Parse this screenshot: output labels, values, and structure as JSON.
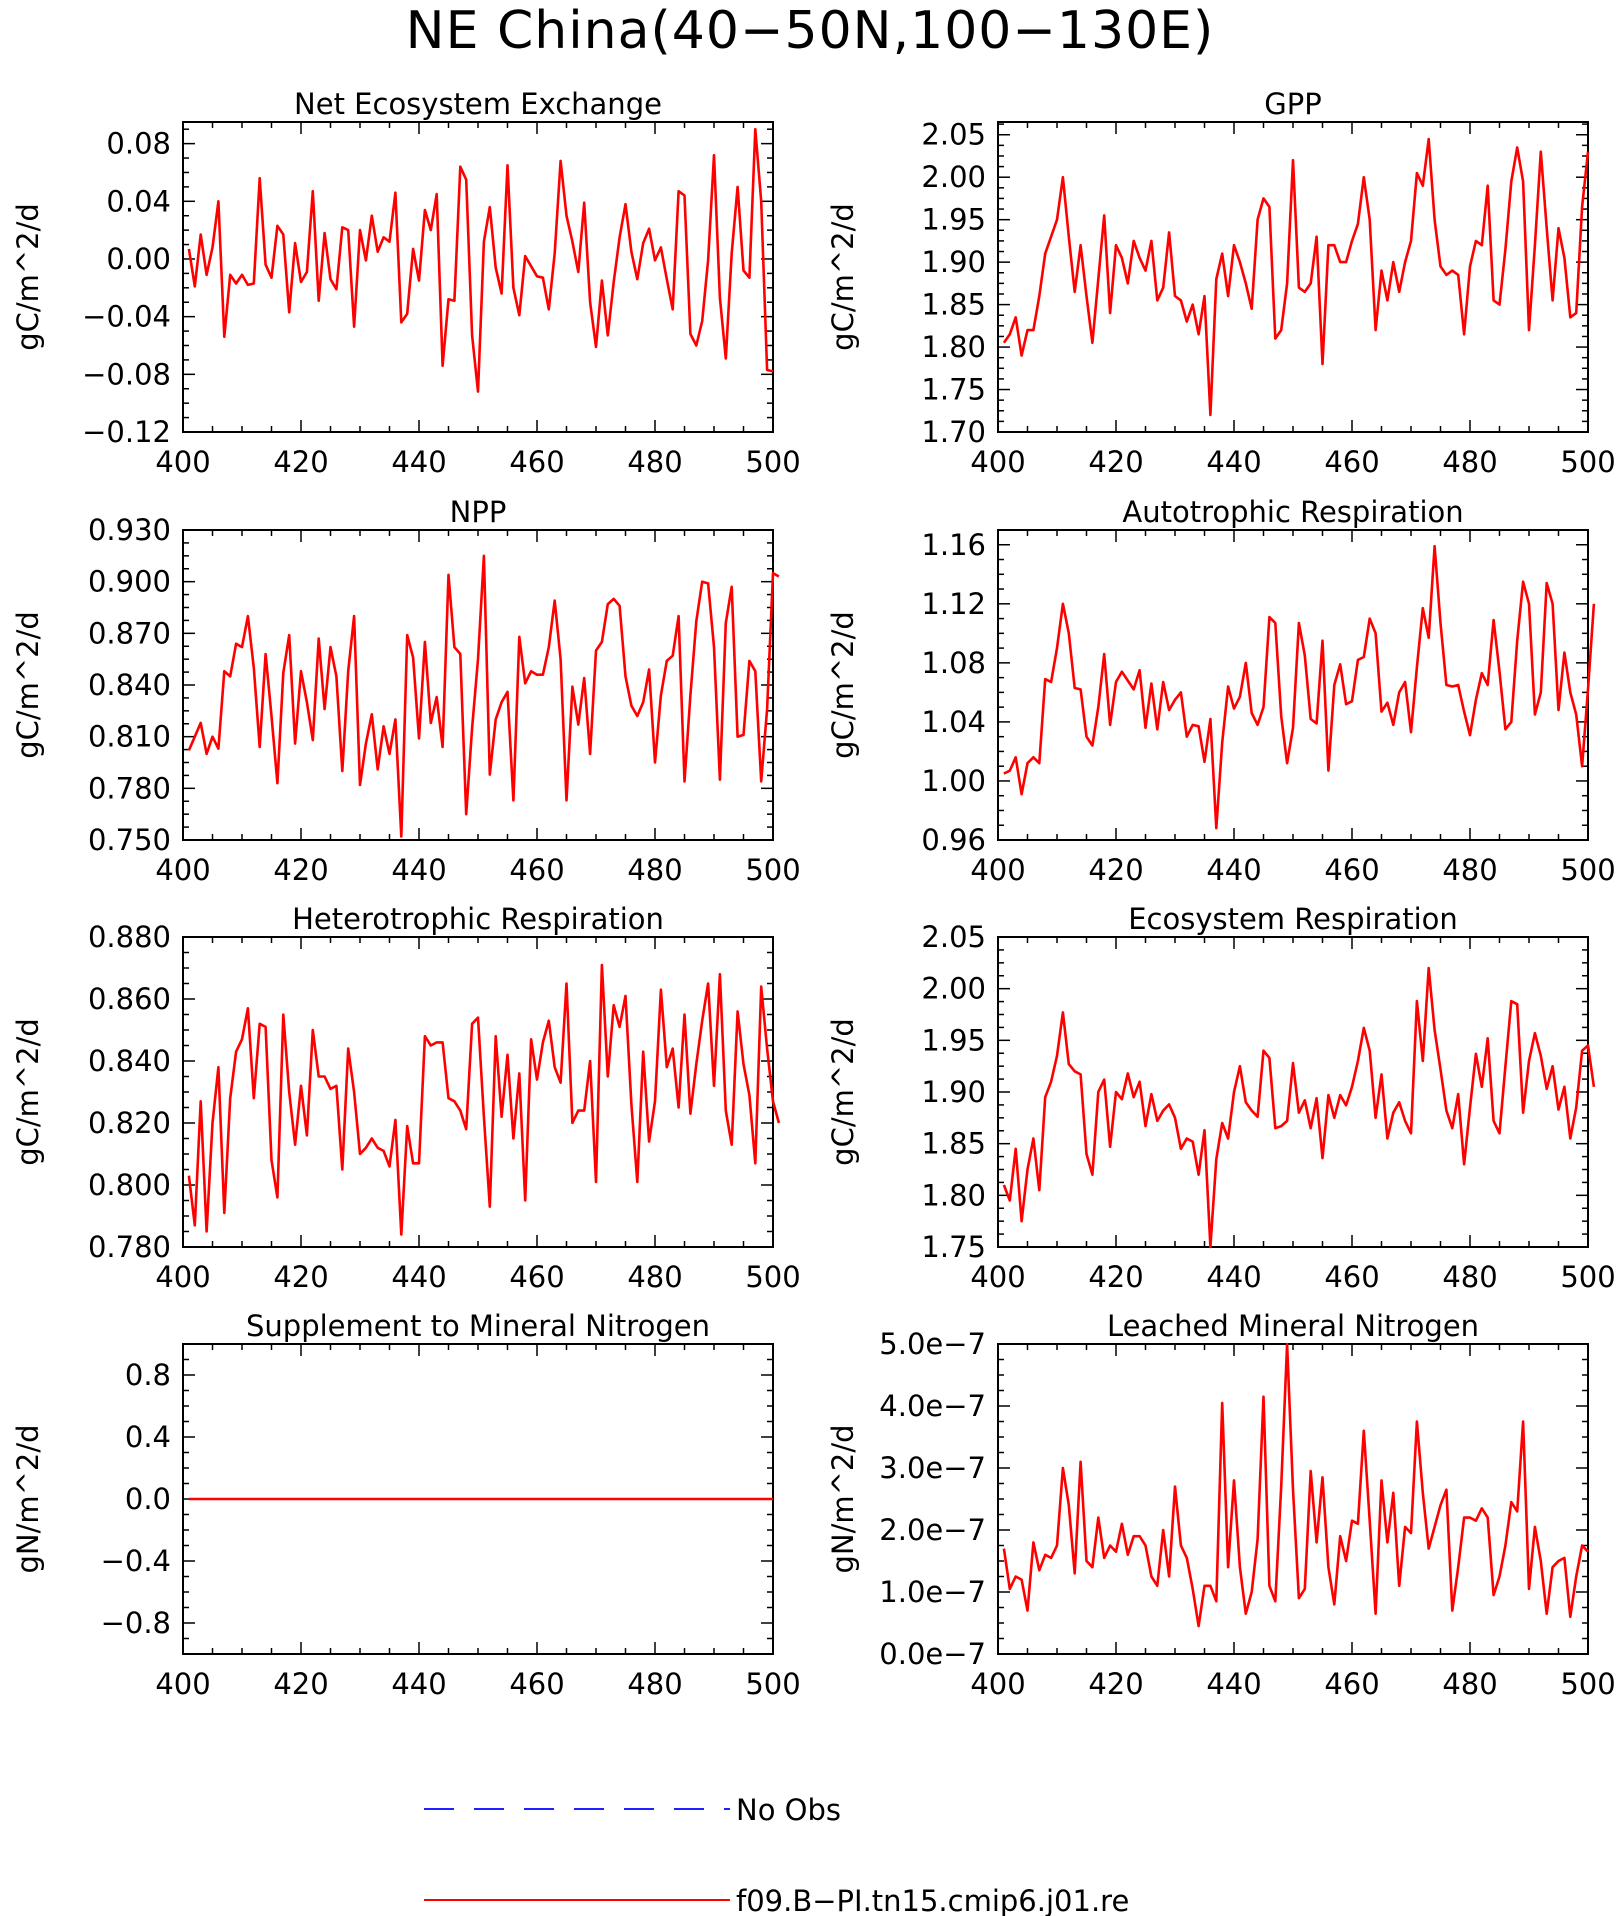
{
  "figure_title": "NE China(40−50N,100−130E)",
  "legend": {
    "entries": [
      {
        "label": "No Obs",
        "color": "#1f1fff",
        "style": "dashed"
      },
      {
        "label": "f09.B−PI.tn15.cmip6.j01.re",
        "color": "#ff0000",
        "style": "solid"
      }
    ]
  },
  "chart_data": [
    {
      "type": "line",
      "title": "Net Ecosystem Exchange",
      "ylabel": "gC/m^2/d",
      "xlim": [
        400,
        500
      ],
      "ylim": [
        -0.12,
        0.095
      ],
      "xticks": [
        400,
        420,
        440,
        460,
        480,
        500
      ],
      "yticks": [
        -0.12,
        -0.08,
        -0.04,
        0.0,
        0.04,
        0.08
      ],
      "ytick_labels": [
        "−0.12",
        "−0.08",
        "−0.04",
        "0.00",
        "0.04",
        "0.08"
      ],
      "series": [
        {
          "name": "f09.B−PI.tn15.cmip6.j01.re",
          "color": "#ff0000",
          "x_start": 401,
          "values": [
            0.007,
            -0.019,
            0.017,
            -0.011,
            0.008,
            0.04,
            -0.054,
            -0.011,
            -0.017,
            -0.011,
            -0.018,
            -0.017,
            0.056,
            -0.004,
            -0.013,
            0.023,
            0.017,
            -0.037,
            0.011,
            -0.016,
            -0.009,
            0.047,
            -0.029,
            0.018,
            -0.014,
            -0.021,
            0.022,
            0.02,
            -0.047,
            0.02,
            -0.001,
            0.03,
            0.005,
            0.015,
            0.012,
            0.046,
            -0.044,
            -0.038,
            0.007,
            -0.015,
            0.034,
            0.02,
            0.045,
            -0.074,
            -0.028,
            -0.029,
            0.064,
            0.055,
            -0.053,
            -0.092,
            0.012,
            0.036,
            -0.006,
            -0.024,
            0.065,
            -0.02,
            -0.039,
            0.002,
            -0.005,
            -0.012,
            -0.013,
            -0.035,
            0.004,
            0.068,
            0.03,
            0.012,
            -0.009,
            0.039,
            -0.03,
            -0.061,
            -0.015,
            -0.053,
            -0.016,
            0.015,
            0.038,
            0.005,
            -0.014,
            0.011,
            0.021,
            -0.001,
            0.008,
            -0.014,
            -0.035,
            0.047,
            0.044,
            -0.052,
            -0.06,
            -0.043,
            -0.001,
            0.072,
            -0.027,
            -0.069,
            0.004,
            0.05,
            -0.008,
            -0.013,
            0.09,
            0.04,
            -0.077,
            -0.078
          ]
        }
      ]
    },
    {
      "type": "line",
      "title": "GPP",
      "ylabel": "gC/m^2/d",
      "xlim": [
        400,
        500
      ],
      "ylim": [
        1.7,
        2.065
      ],
      "xticks": [
        400,
        420,
        440,
        460,
        480,
        500
      ],
      "yticks": [
        1.7,
        1.75,
        1.8,
        1.85,
        1.9,
        1.95,
        2.0,
        2.05
      ],
      "ytick_labels": [
        "1.70",
        "1.75",
        "1.80",
        "1.85",
        "1.90",
        "1.95",
        "2.00",
        "2.05"
      ],
      "series": [
        {
          "name": "f09.B−PI.tn15.cmip6.j01.re",
          "color": "#ff0000",
          "x_start": 401,
          "values": [
            1.805,
            1.815,
            1.835,
            1.79,
            1.82,
            1.82,
            1.86,
            1.91,
            1.93,
            1.95,
            2.0,
            1.93,
            1.865,
            1.92,
            1.86,
            1.805,
            1.88,
            1.955,
            1.84,
            1.92,
            1.905,
            1.875,
            1.925,
            1.905,
            1.89,
            1.925,
            1.855,
            1.87,
            1.935,
            1.86,
            1.855,
            1.83,
            1.85,
            1.815,
            1.86,
            1.72,
            1.88,
            1.91,
            1.86,
            1.92,
            1.9,
            1.875,
            1.845,
            1.95,
            1.975,
            1.965,
            1.81,
            1.82,
            1.875,
            2.02,
            1.87,
            1.865,
            1.875,
            1.93,
            1.78,
            1.92,
            1.92,
            1.9,
            1.9,
            1.925,
            1.945,
            2.0,
            1.95,
            1.82,
            1.89,
            1.855,
            1.9,
            1.865,
            1.9,
            1.925,
            2.005,
            1.99,
            2.045,
            1.95,
            1.895,
            1.885,
            1.89,
            1.885,
            1.815,
            1.895,
            1.925,
            1.92,
            1.99,
            1.855,
            1.85,
            1.915,
            1.995,
            2.035,
            1.995,
            1.82,
            1.92,
            2.03,
            1.94,
            1.855,
            1.94,
            1.905,
            1.835,
            1.84,
            1.965,
            2.03
          ]
        }
      ]
    },
    {
      "type": "line",
      "title": "NPP",
      "ylabel": "gC/m^2/d",
      "xlim": [
        400,
        500
      ],
      "ylim": [
        0.75,
        0.93
      ],
      "xticks": [
        400,
        420,
        440,
        460,
        480,
        500
      ],
      "yticks": [
        0.75,
        0.78,
        0.81,
        0.84,
        0.87,
        0.9,
        0.93
      ],
      "ytick_labels": [
        "0.750",
        "0.780",
        "0.810",
        "0.840",
        "0.870",
        "0.900",
        "0.930"
      ],
      "series": [
        {
          "name": "f09.B−PI.tn15.cmip6.j01.re",
          "color": "#ff0000",
          "x_start": 401,
          "values": [
            0.802,
            0.81,
            0.818,
            0.8,
            0.81,
            0.803,
            0.848,
            0.845,
            0.864,
            0.862,
            0.88,
            0.85,
            0.804,
            0.858,
            0.822,
            0.783,
            0.847,
            0.869,
            0.806,
            0.848,
            0.83,
            0.808,
            0.867,
            0.826,
            0.862,
            0.845,
            0.79,
            0.848,
            0.88,
            0.782,
            0.806,
            0.823,
            0.791,
            0.816,
            0.8,
            0.82,
            0.752,
            0.869,
            0.856,
            0.809,
            0.865,
            0.818,
            0.833,
            0.804,
            0.904,
            0.862,
            0.858,
            0.765,
            0.815,
            0.855,
            0.915,
            0.788,
            0.82,
            0.83,
            0.836,
            0.773,
            0.868,
            0.841,
            0.848,
            0.846,
            0.846,
            0.862,
            0.889,
            0.855,
            0.773,
            0.839,
            0.817,
            0.844,
            0.8,
            0.86,
            0.865,
            0.887,
            0.89,
            0.886,
            0.845,
            0.828,
            0.822,
            0.83,
            0.849,
            0.795,
            0.834,
            0.854,
            0.857,
            0.88,
            0.784,
            0.834,
            0.877,
            0.9,
            0.899,
            0.862,
            0.785,
            0.876,
            0.897,
            0.81,
            0.811,
            0.854,
            0.848,
            0.784,
            0.826,
            0.905,
            0.903
          ]
        }
      ]
    },
    {
      "type": "line",
      "title": "Autotrophic Respiration",
      "ylabel": "gC/m^2/d",
      "xlim": [
        400,
        500
      ],
      "ylim": [
        0.96,
        1.17
      ],
      "xticks": [
        400,
        420,
        440,
        460,
        480,
        500
      ],
      "yticks": [
        0.96,
        1.0,
        1.04,
        1.08,
        1.12,
        1.16
      ],
      "ytick_labels": [
        "0.96",
        "1.00",
        "1.04",
        "1.08",
        "1.12",
        "1.16"
      ],
      "series": [
        {
          "name": "f09.B−PI.tn15.cmip6.j01.re",
          "color": "#ff0000",
          "x_start": 401,
          "values": [
            1.005,
            1.007,
            1.016,
            0.991,
            1.012,
            1.016,
            1.012,
            1.069,
            1.067,
            1.09,
            1.12,
            1.1,
            1.063,
            1.062,
            1.03,
            1.024,
            1.05,
            1.086,
            1.038,
            1.067,
            1.074,
            1.068,
            1.062,
            1.075,
            1.036,
            1.066,
            1.035,
            1.067,
            1.048,
            1.055,
            1.06,
            1.03,
            1.038,
            1.037,
            1.013,
            1.042,
            0.968,
            1.026,
            1.064,
            1.049,
            1.057,
            1.08,
            1.046,
            1.038,
            1.05,
            1.111,
            1.107,
            1.044,
            1.012,
            1.036,
            1.107,
            1.085,
            1.042,
            1.039,
            1.095,
            1.007,
            1.065,
            1.079,
            1.052,
            1.054,
            1.082,
            1.084,
            1.11,
            1.1,
            1.047,
            1.053,
            1.038,
            1.06,
            1.067,
            1.033,
            1.077,
            1.117,
            1.097,
            1.159,
            1.107,
            1.065,
            1.064,
            1.065,
            1.047,
            1.031,
            1.055,
            1.073,
            1.065,
            1.109,
            1.074,
            1.035,
            1.04,
            1.095,
            1.135,
            1.12,
            1.045,
            1.06,
            1.134,
            1.12,
            1.048,
            1.087,
            1.06,
            1.045,
            1.01,
            1.062,
            1.12
          ]
        }
      ]
    },
    {
      "type": "line",
      "title": "Heterotrophic Respiration",
      "ylabel": "gC/m^2/d",
      "xlim": [
        400,
        500
      ],
      "ylim": [
        0.78,
        0.88
      ],
      "xticks": [
        400,
        420,
        440,
        460,
        480,
        500
      ],
      "yticks": [
        0.78,
        0.8,
        0.82,
        0.84,
        0.86,
        0.88
      ],
      "ytick_labels": [
        "0.780",
        "0.800",
        "0.820",
        "0.840",
        "0.860",
        "0.880"
      ],
      "series": [
        {
          "name": "f09.B−PI.tn15.cmip6.j01.re",
          "color": "#ff0000",
          "x_start": 401,
          "values": [
            0.803,
            0.787,
            0.827,
            0.785,
            0.82,
            0.838,
            0.791,
            0.828,
            0.843,
            0.847,
            0.857,
            0.828,
            0.852,
            0.851,
            0.808,
            0.796,
            0.855,
            0.83,
            0.813,
            0.832,
            0.816,
            0.85,
            0.835,
            0.835,
            0.831,
            0.832,
            0.805,
            0.844,
            0.83,
            0.81,
            0.812,
            0.815,
            0.812,
            0.811,
            0.806,
            0.821,
            0.784,
            0.819,
            0.807,
            0.807,
            0.848,
            0.845,
            0.846,
            0.846,
            0.828,
            0.827,
            0.824,
            0.818,
            0.852,
            0.854,
            0.822,
            0.793,
            0.848,
            0.822,
            0.842,
            0.815,
            0.836,
            0.795,
            0.847,
            0.834,
            0.846,
            0.853,
            0.838,
            0.833,
            0.865,
            0.82,
            0.824,
            0.824,
            0.84,
            0.801,
            0.871,
            0.835,
            0.858,
            0.851,
            0.861,
            0.826,
            0.801,
            0.843,
            0.814,
            0.827,
            0.863,
            0.838,
            0.844,
            0.825,
            0.855,
            0.823,
            0.839,
            0.853,
            0.865,
            0.832,
            0.868,
            0.824,
            0.813,
            0.856,
            0.839,
            0.829,
            0.807,
            0.864,
            0.844,
            0.827,
            0.82
          ]
        }
      ]
    },
    {
      "type": "line",
      "title": "Ecosystem Respiration",
      "ylabel": "gC/m^2/d",
      "xlim": [
        400,
        500
      ],
      "ylim": [
        1.75,
        2.05
      ],
      "xticks": [
        400,
        420,
        440,
        460,
        480,
        500
      ],
      "yticks": [
        1.75,
        1.8,
        1.85,
        1.9,
        1.95,
        2.0,
        2.05
      ],
      "ytick_labels": [
        "1.75",
        "1.80",
        "1.85",
        "1.90",
        "1.95",
        "2.00",
        "2.05"
      ],
      "series": [
        {
          "name": "f09.B−PI.tn15.cmip6.j01.re",
          "color": "#ff0000",
          "x_start": 401,
          "values": [
            1.81,
            1.795,
            1.845,
            1.775,
            1.825,
            1.855,
            1.805,
            1.895,
            1.91,
            1.935,
            1.977,
            1.927,
            1.92,
            1.917,
            1.84,
            1.82,
            1.9,
            1.912,
            1.847,
            1.9,
            1.893,
            1.918,
            1.895,
            1.91,
            1.867,
            1.898,
            1.872,
            1.882,
            1.888,
            1.875,
            1.845,
            1.855,
            1.852,
            1.82,
            1.863,
            1.75,
            1.835,
            1.87,
            1.855,
            1.9,
            1.925,
            1.89,
            1.882,
            1.876,
            1.94,
            1.933,
            1.865,
            1.867,
            1.872,
            1.928,
            1.88,
            1.892,
            1.865,
            1.894,
            1.836,
            1.897,
            1.875,
            1.897,
            1.887,
            1.905,
            1.93,
            1.962,
            1.94,
            1.875,
            1.917,
            1.855,
            1.88,
            1.89,
            1.872,
            1.86,
            1.988,
            1.93,
            2.02,
            1.96,
            1.922,
            1.882,
            1.865,
            1.898,
            1.83,
            1.885,
            1.937,
            1.905,
            1.952,
            1.872,
            1.86,
            1.925,
            1.988,
            1.985,
            1.88,
            1.93,
            1.957,
            1.935,
            1.903,
            1.925,
            1.883,
            1.905,
            1.855,
            1.885,
            1.94,
            1.945,
            1.905
          ]
        }
      ]
    },
    {
      "type": "line",
      "title": "Supplement to Mineral Nitrogen",
      "ylabel": "gN/m^2/d",
      "xlim": [
        400,
        500
      ],
      "ylim": [
        -1.0,
        1.0
      ],
      "xticks": [
        400,
        420,
        440,
        460,
        480,
        500
      ],
      "yticks": [
        -0.8,
        -0.4,
        0.0,
        0.4,
        0.8
      ],
      "ytick_labels": [
        "−0.8",
        "−0.4",
        "0.0",
        "0.4",
        "0.8"
      ],
      "series": [
        {
          "name": "f09.B−PI.tn15.cmip6.j01.re",
          "color": "#ff0000",
          "x": [
            401,
            500
          ],
          "values": [
            0.0,
            0.0
          ]
        }
      ]
    },
    {
      "type": "line",
      "title": "Leached Mineral Nitrogen",
      "ylabel": "gN/m^2/d",
      "xlim": [
        400,
        500
      ],
      "ylim": [
        0.0,
        5e-07
      ],
      "xticks": [
        400,
        420,
        440,
        460,
        480,
        500
      ],
      "yticks": [
        0.0,
        1e-07,
        2e-07,
        3e-07,
        4e-07,
        5e-07
      ],
      "ytick_labels": [
        "0.0e−7",
        "1.0e−7",
        "2.0e−7",
        "3.0e−7",
        "4.0e−7",
        "5.0e−7"
      ],
      "series": [
        {
          "name": "f09.B−PI.tn15.cmip6.j01.re",
          "color": "#ff0000",
          "x_start": 401,
          "scale": 1e-07,
          "values": [
            1.7,
            1.05,
            1.25,
            1.2,
            0.7,
            1.8,
            1.35,
            1.6,
            1.55,
            1.75,
            3.0,
            2.4,
            1.3,
            3.1,
            1.5,
            1.4,
            2.2,
            1.55,
            1.75,
            1.65,
            2.1,
            1.6,
            1.9,
            1.9,
            1.75,
            1.25,
            1.1,
            2.0,
            1.25,
            2.7,
            1.75,
            1.55,
            1.05,
            0.45,
            1.1,
            1.1,
            0.85,
            4.05,
            1.4,
            2.8,
            1.4,
            0.65,
            1.0,
            1.85,
            4.15,
            1.1,
            0.85,
            2.7,
            5.0,
            2.65,
            0.9,
            1.05,
            2.95,
            1.8,
            2.85,
            1.4,
            0.8,
            1.9,
            1.5,
            2.15,
            2.1,
            3.6,
            2.15,
            0.65,
            2.8,
            1.8,
            2.6,
            1.1,
            2.05,
            1.95,
            3.75,
            2.6,
            1.7,
            2.05,
            2.4,
            2.65,
            0.7,
            1.4,
            2.2,
            2.2,
            2.15,
            2.35,
            2.2,
            0.95,
            1.25,
            1.75,
            2.45,
            2.3,
            3.75,
            1.05,
            2.05,
            1.5,
            0.65,
            1.4,
            1.5,
            1.55,
            0.6,
            1.25,
            1.75,
            1.65
          ]
        }
      ]
    }
  ]
}
